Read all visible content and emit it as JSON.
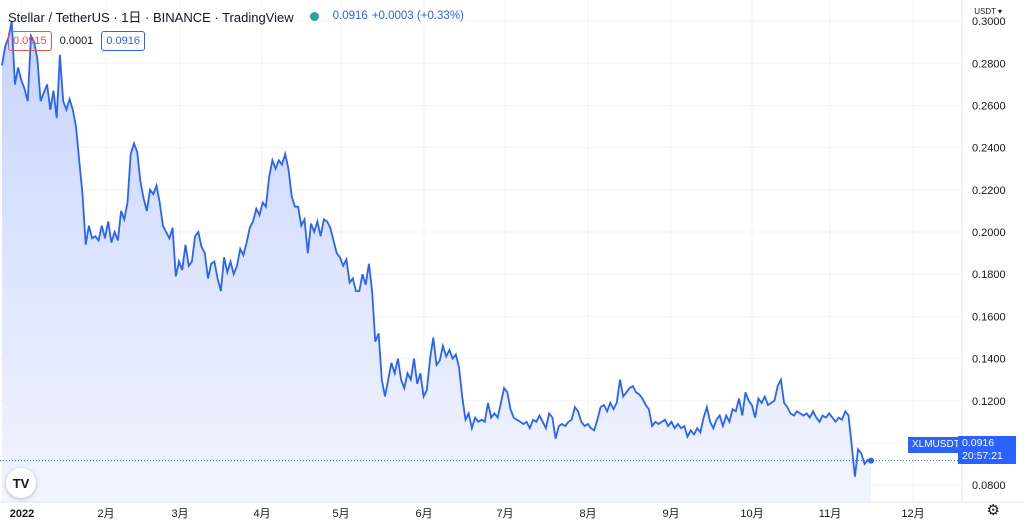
{
  "header": {
    "title": "Stellar / TetherUS · 1日 · BINANCE · TradingView",
    "last": "0.0916",
    "change": "+0.0003 (+0.33%)"
  },
  "quotes": {
    "bid": "0.0915",
    "spread": "0.0001",
    "ask": "0.0916"
  },
  "currency": "USDT",
  "symbol_tag": "XLMUSDT",
  "price_tag": {
    "price": "0.0916",
    "countdown": "20:57:21"
  },
  "colors": {
    "line": "#2962ff",
    "area_top": "#c7d4ff",
    "area_bottom": "#f2f5ff",
    "grid": "#f0f3fa",
    "last_line": "#2962ff"
  },
  "icons": {
    "logo": "tradingview-logo-icon",
    "settings": "gear-icon",
    "currency_menu": "chevron-down-icon"
  },
  "chart_data": {
    "type": "area",
    "x_ticks": [
      "2022",
      "2月",
      "3月",
      "4月",
      "5月",
      "6月",
      "7月",
      "8月",
      "9月",
      "10月",
      "11月",
      "12月"
    ],
    "y_ticks": [
      "0.3000",
      "0.2800",
      "0.2600",
      "0.2400",
      "0.2200",
      "0.2000",
      "0.1800",
      "0.1600",
      "0.1400",
      "0.1200",
      "0.1000",
      "0.0800"
    ],
    "ylim": [
      0.072,
      0.31
    ],
    "last_price": 0.0916,
    "grid": true,
    "series": [
      {
        "values": [
          0.279,
          0.288,
          0.292,
          0.3,
          0.27,
          0.278,
          0.272,
          0.268,
          0.262,
          0.293,
          0.29,
          0.282,
          0.262,
          0.266,
          0.27,
          0.258,
          0.267,
          0.254,
          0.284,
          0.262,
          0.258,
          0.263,
          0.258,
          0.25,
          0.234,
          0.218,
          0.194,
          0.203,
          0.197,
          0.198,
          0.196,
          0.203,
          0.197,
          0.205,
          0.195,
          0.2,
          0.196,
          0.21,
          0.206,
          0.214,
          0.237,
          0.242,
          0.238,
          0.224,
          0.216,
          0.21,
          0.22,
          0.218,
          0.222,
          0.214,
          0.203,
          0.2,
          0.197,
          0.202,
          0.179,
          0.186,
          0.182,
          0.194,
          0.184,
          0.186,
          0.198,
          0.2,
          0.193,
          0.19,
          0.178,
          0.185,
          0.186,
          0.178,
          0.172,
          0.188,
          0.181,
          0.186,
          0.18,
          0.184,
          0.192,
          0.189,
          0.195,
          0.202,
          0.205,
          0.211,
          0.208,
          0.214,
          0.212,
          0.226,
          0.234,
          0.23,
          0.234,
          0.232,
          0.237,
          0.23,
          0.217,
          0.212,
          0.212,
          0.203,
          0.206,
          0.19,
          0.204,
          0.2,
          0.205,
          0.198,
          0.206,
          0.205,
          0.202,
          0.196,
          0.19,
          0.188,
          0.184,
          0.187,
          0.176,
          0.178,
          0.172,
          0.172,
          0.18,
          0.175,
          0.185,
          0.172,
          0.148,
          0.152,
          0.13,
          0.122,
          0.13,
          0.138,
          0.133,
          0.14,
          0.13,
          0.126,
          0.133,
          0.13,
          0.14,
          0.128,
          0.133,
          0.122,
          0.125,
          0.14,
          0.15,
          0.137,
          0.139,
          0.146,
          0.141,
          0.144,
          0.14,
          0.142,
          0.136,
          0.122,
          0.111,
          0.114,
          0.107,
          0.112,
          0.11,
          0.111,
          0.11,
          0.119,
          0.112,
          0.114,
          0.112,
          0.119,
          0.126,
          0.124,
          0.116,
          0.112,
          0.111,
          0.11,
          0.109,
          0.11,
          0.107,
          0.111,
          0.11,
          0.113,
          0.11,
          0.107,
          0.114,
          0.112,
          0.102,
          0.108,
          0.109,
          0.108,
          0.11,
          0.111,
          0.117,
          0.115,
          0.11,
          0.108,
          0.109,
          0.107,
          0.106,
          0.111,
          0.117,
          0.118,
          0.115,
          0.119,
          0.116,
          0.119,
          0.13,
          0.122,
          0.124,
          0.126,
          0.127,
          0.124,
          0.123,
          0.121,
          0.118,
          0.116,
          0.108,
          0.11,
          0.109,
          0.11,
          0.111,
          0.108,
          0.11,
          0.107,
          0.109,
          0.107,
          0.108,
          0.103,
          0.106,
          0.104,
          0.107,
          0.105,
          0.112,
          0.117,
          0.11,
          0.107,
          0.111,
          0.113,
          0.108,
          0.113,
          0.11,
          0.116,
          0.115,
          0.121,
          0.113,
          0.124,
          0.12,
          0.118,
          0.112,
          0.121,
          0.119,
          0.122,
          0.118,
          0.119,
          0.12,
          0.127,
          0.13,
          0.119,
          0.117,
          0.114,
          0.113,
          0.115,
          0.114,
          0.113,
          0.114,
          0.112,
          0.115,
          0.112,
          0.11,
          0.113,
          0.112,
          0.114,
          0.112,
          0.11,
          0.112,
          0.111,
          0.115,
          0.113,
          0.099,
          0.084,
          0.097,
          0.095,
          0.09,
          0.092,
          0.0916
        ]
      }
    ]
  }
}
